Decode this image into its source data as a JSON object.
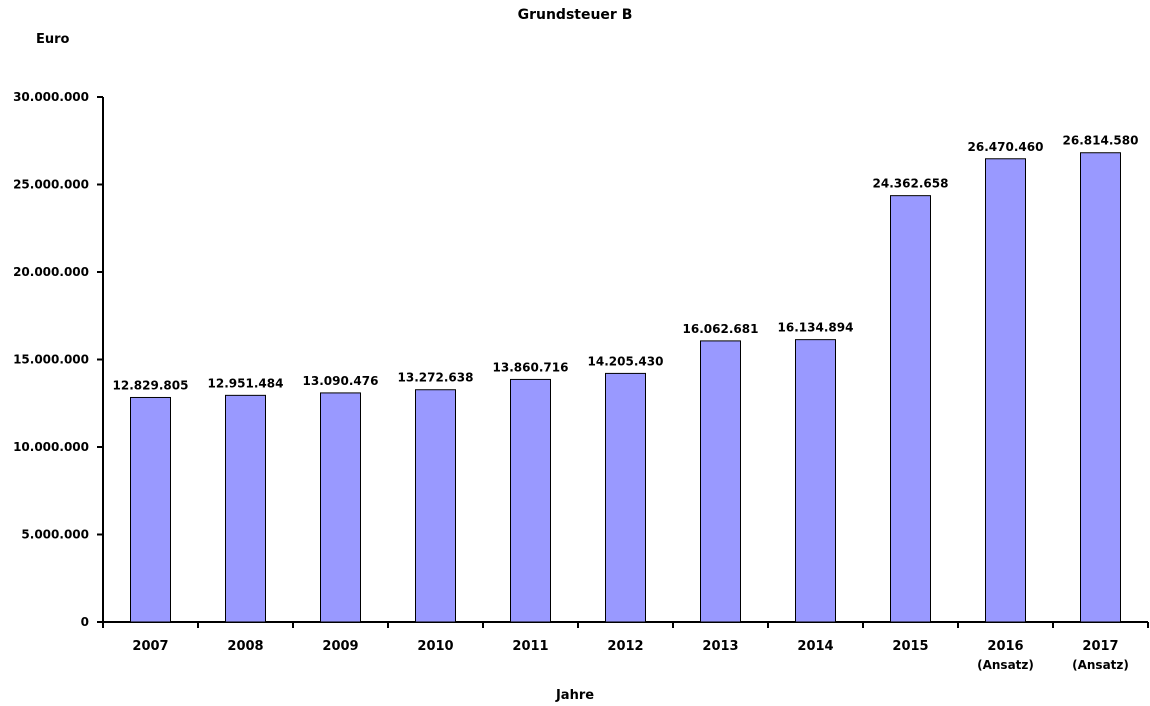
{
  "chart_data": {
    "type": "bar",
    "title": "Grundsteuer B",
    "ylabel": "Euro",
    "xlabel": "Jahre",
    "ylim": [
      0,
      30000000
    ],
    "yticks": [
      "0",
      "5.000.000",
      "10.000.000",
      "15.000.000",
      "20.000.000",
      "25.000.000",
      "30.000.000"
    ],
    "categories": [
      {
        "year": "2007",
        "sub": ""
      },
      {
        "year": "2008",
        "sub": ""
      },
      {
        "year": "2009",
        "sub": ""
      },
      {
        "year": "2010",
        "sub": ""
      },
      {
        "year": "2011",
        "sub": ""
      },
      {
        "year": "2012",
        "sub": ""
      },
      {
        "year": "2013",
        "sub": ""
      },
      {
        "year": "2014",
        "sub": ""
      },
      {
        "year": "2015",
        "sub": ""
      },
      {
        "year": "2016",
        "sub": "(Ansatz)"
      },
      {
        "year": "2017",
        "sub": "(Ansatz)"
      }
    ],
    "values": [
      12829805,
      12951484,
      13090476,
      13272638,
      13860716,
      14205430,
      16062681,
      16134894,
      24362658,
      26470460,
      26814580
    ],
    "value_labels": [
      "12.829.805",
      "12.951.484",
      "13.090.476",
      "13.272.638",
      "13.860.716",
      "14.205.430",
      "16.062.681",
      "16.134.894",
      "24.362.658",
      "26.470.460",
      "26.814.580"
    ],
    "bar_color": "#9999ff",
    "grid": false,
    "legend": "none"
  }
}
